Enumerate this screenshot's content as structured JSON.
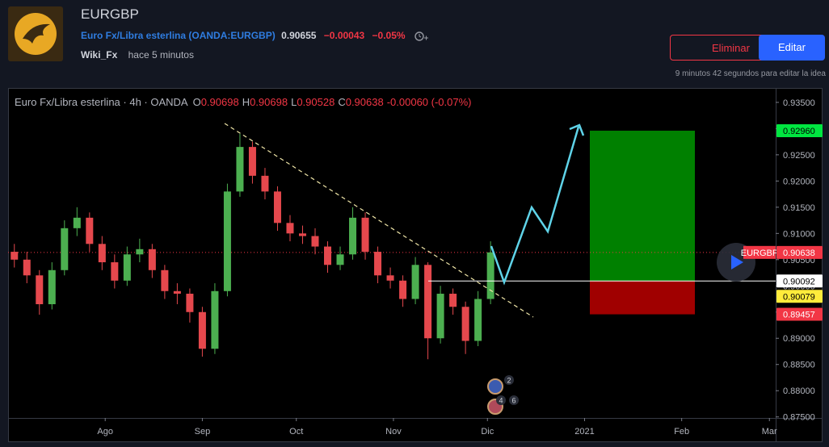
{
  "header": {
    "title": "EURGBP",
    "instrument": "Euro Fx/Libra esterlina",
    "symbol": "(OANDA:EURGBP)",
    "price": "0.90655",
    "change": "−0.00043",
    "change_pct": "−0.05%",
    "author": "Wiki_Fx",
    "time": "hace 5 minutos"
  },
  "buttons": {
    "delete": "Eliminar",
    "edit": "Editar"
  },
  "edit_note": "9 minutos 42 segundos para editar la idea",
  "chart_data": {
    "type": "candlestick",
    "title": "Euro Fx/Libra esterlina · 4h · OANDA",
    "ohlc": [
      {
        "key": "O",
        "value": 0.90698
      },
      {
        "key": "H",
        "value": 0.90698
      },
      {
        "key": "L",
        "value": 0.90528
      },
      {
        "key": "C",
        "value": 0.90638
      }
    ],
    "change_label": "-0.00060 (-0.07%)",
    "x": [
      2,
      6,
      10,
      14,
      18,
      22,
      26,
      30,
      34,
      38,
      42,
      46,
      50,
      54,
      58,
      62,
      66,
      70,
      74,
      78,
      82,
      86,
      90,
      94,
      98,
      102,
      106,
      110,
      114,
      118,
      122,
      126,
      130,
      134,
      138,
      142,
      146,
      150,
      154
    ],
    "open": [
      0.9065,
      0.905,
      0.902,
      0.8965,
      0.903,
      0.911,
      0.913,
      0.908,
      0.9045,
      0.901,
      0.906,
      0.907,
      0.903,
      0.899,
      0.8985,
      0.895,
      0.888,
      0.899,
      0.918,
      0.9265,
      0.921,
      0.918,
      0.912,
      0.91,
      0.9095,
      0.9075,
      0.904,
      0.906,
      0.913,
      0.9065,
      0.902,
      0.901,
      0.8975,
      0.904,
      0.89,
      0.8985,
      0.896,
      0.8895,
      0.8975
    ],
    "high": [
      0.908,
      0.9065,
      0.903,
      0.9045,
      0.9125,
      0.915,
      0.914,
      0.9095,
      0.906,
      0.9075,
      0.909,
      0.908,
      0.904,
      0.9005,
      0.8995,
      0.896,
      0.9005,
      0.9195,
      0.929,
      0.9275,
      0.9225,
      0.919,
      0.9135,
      0.9115,
      0.911,
      0.9085,
      0.9075,
      0.915,
      0.914,
      0.9075,
      0.9035,
      0.902,
      0.9055,
      0.9045,
      0.9,
      0.8995,
      0.897,
      0.899,
      0.9085
    ],
    "low": [
      0.9035,
      0.9005,
      0.8945,
      0.8955,
      0.902,
      0.9095,
      0.9065,
      0.903,
      0.8995,
      0.9,
      0.9045,
      0.9015,
      0.8975,
      0.8965,
      0.893,
      0.8865,
      0.887,
      0.898,
      0.917,
      0.9195,
      0.9165,
      0.9105,
      0.9085,
      0.908,
      0.906,
      0.9025,
      0.903,
      0.905,
      0.905,
      0.9005,
      0.8995,
      0.896,
      0.8965,
      0.886,
      0.889,
      0.8945,
      0.887,
      0.8885,
      0.8965
    ],
    "close": [
      0.905,
      0.902,
      0.8965,
      0.903,
      0.911,
      0.913,
      0.908,
      0.9045,
      0.901,
      0.906,
      0.907,
      0.903,
      0.899,
      0.8985,
      0.895,
      0.888,
      0.899,
      0.918,
      0.9265,
      0.921,
      0.918,
      0.912,
      0.91,
      0.9095,
      0.9075,
      0.904,
      0.906,
      0.913,
      0.9065,
      0.902,
      0.901,
      0.8975,
      0.904,
      0.89,
      0.8985,
      0.896,
      0.8895,
      0.8975,
      0.90638
    ],
    "up_color": "#4caf50",
    "down_color": "#e5484d",
    "xlim": [
      0,
      245
    ],
    "xticks": [
      {
        "value": 31,
        "label": "Ago"
      },
      {
        "value": 62,
        "label": "Sep"
      },
      {
        "value": 92,
        "label": "Oct"
      },
      {
        "value": 123,
        "label": "Nov"
      },
      {
        "value": 153,
        "label": "Dic"
      },
      {
        "value": 184,
        "label": "2021"
      },
      {
        "value": 215,
        "label": "Feb"
      },
      {
        "value": 243,
        "label": "Mar"
      }
    ],
    "ylim": [
      0.8748,
      0.9376
    ],
    "yticks": [
      {
        "value": 0.935,
        "label": "0.93500"
      },
      {
        "value": 0.93,
        "label": "0.93000"
      },
      {
        "value": 0.925,
        "label": "0.92500"
      },
      {
        "value": 0.92,
        "label": "0.92000"
      },
      {
        "value": 0.915,
        "label": "0.91500"
      },
      {
        "value": 0.91,
        "label": "0.91000"
      },
      {
        "value": 0.905,
        "label": "0.90500"
      },
      {
        "value": 0.9,
        "label": "0.90000"
      },
      {
        "value": 0.895,
        "label": "0.89500"
      },
      {
        "value": 0.89,
        "label": "0.89000"
      },
      {
        "value": 0.885,
        "label": "0.88500"
      },
      {
        "value": 0.88,
        "label": "0.88000"
      },
      {
        "value": 0.875,
        "label": "0.87500"
      }
    ],
    "price_tags": [
      {
        "value": 0.9296,
        "label": "0.92960",
        "color": "#00e640"
      },
      {
        "value": 0.90638,
        "label": "0.90638",
        "name": "EURGBP",
        "color": "#f23645"
      },
      {
        "value": 0.90092,
        "label": "0.90092",
        "color": "#ffffff"
      },
      {
        "value": 0.90079,
        "label": "0.90079",
        "color": "#ffeb3b"
      },
      {
        "value": 0.89457,
        "label": "0.89457",
        "color": "#f23645"
      }
    ],
    "event_badges": [
      "2",
      "4",
      "6"
    ],
    "grid": false
  }
}
